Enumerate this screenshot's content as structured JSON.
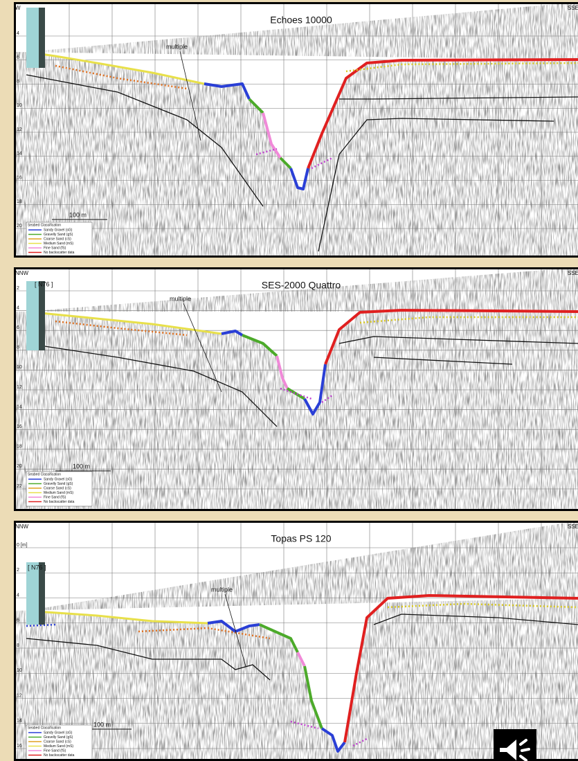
{
  "panels": [
    {
      "title": "Echoes 10000",
      "left_label": "W",
      "right_label": "SSE",
      "depth_labels": [
        "4",
        "6",
        "8",
        "10",
        "12",
        "14",
        "16",
        "18",
        "20"
      ],
      "multiple_label": "multiple",
      "scale_label": "100 m",
      "legend": {
        "title": "Seabed Classification",
        "items": [
          "Sandy Gravel (sG)",
          "Gravelly Sand (gS)",
          "Coarse Sand (cS)",
          "Medium Sand (mS)",
          "Fine Sand (fS)",
          "No backscatter data"
        ]
      }
    },
    {
      "title": "SES-2000 Quattro",
      "left_label": "NNW",
      "right_label": "SSE",
      "tag": "[ N76 ]",
      "depth_labels": [
        "2",
        "4",
        "6",
        "8",
        "10",
        "12",
        "14",
        "16",
        "18",
        "20",
        "22"
      ],
      "multiple_label": "multiple",
      "scale_label": "100 m",
      "legend": {
        "title": "Seabed Classification",
        "items": [
          "Sandy Gravel (sG)",
          "Gravelly Sand (gS)",
          "Coarse Sand (cS)",
          "Medium Sand (mS)",
          "Fine Sand (fS)",
          "No backscatter data"
        ]
      }
    },
    {
      "title": "Topas PS 120",
      "left_label": "NNW",
      "right_label": "SSE",
      "tag": "[ N76 ]",
      "depth_labels": [
        "0 [m]",
        "2",
        "4",
        "6",
        "8",
        "10",
        "12",
        "14",
        "16"
      ],
      "multiple_label": "multiple",
      "scale_label": "100 m",
      "legend": {
        "title": "Seabed Classification",
        "items": [
          "Sandy Gravel (sG)",
          "Gravelly Sand (gS)",
          "Coarse Sand (cS)",
          "Medium Sand (mS)",
          "Fine Sand (fS)",
          "No backscatter data"
        ]
      }
    }
  ]
}
